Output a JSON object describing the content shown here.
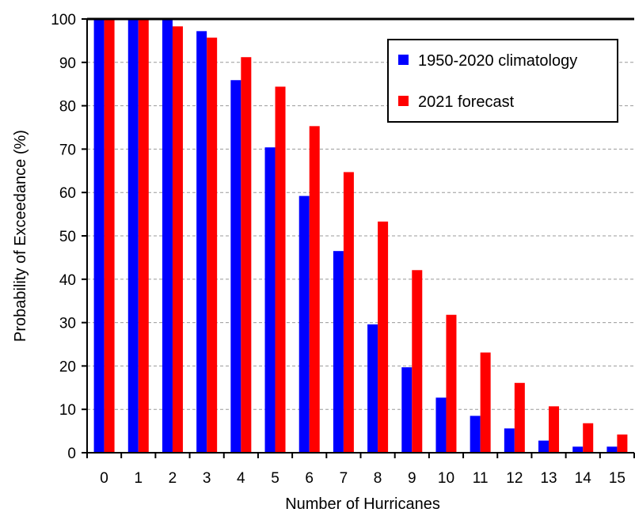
{
  "chart_data": {
    "type": "bar",
    "title": "",
    "xlabel": "Number of Hurricanes",
    "ylabel": "Probability of Exceedance (%)",
    "ylim": [
      0,
      100
    ],
    "yticks": [
      0,
      10,
      20,
      30,
      40,
      50,
      60,
      70,
      80,
      90,
      100
    ],
    "grid": "horizontal-dashed",
    "legend_position": "top-right",
    "categories": [
      "0",
      "1",
      "2",
      "3",
      "4",
      "5",
      "6",
      "7",
      "8",
      "9",
      "10",
      "11",
      "12",
      "13",
      "14",
      "15"
    ],
    "series": [
      {
        "name": "1950-2020 climatology",
        "color": "#0000ff",
        "values": [
          100,
          100,
          100,
          97.2,
          85.9,
          70.4,
          59.2,
          46.5,
          29.6,
          19.7,
          12.7,
          8.5,
          5.6,
          2.8,
          1.4,
          1.4
        ]
      },
      {
        "name": "2021 forecast",
        "color": "#ff0000",
        "values": [
          100,
          100,
          98.3,
          95.7,
          91.2,
          84.4,
          75.3,
          64.7,
          53.3,
          42.1,
          31.8,
          23.1,
          16.1,
          10.7,
          6.8,
          4.2
        ]
      }
    ]
  }
}
